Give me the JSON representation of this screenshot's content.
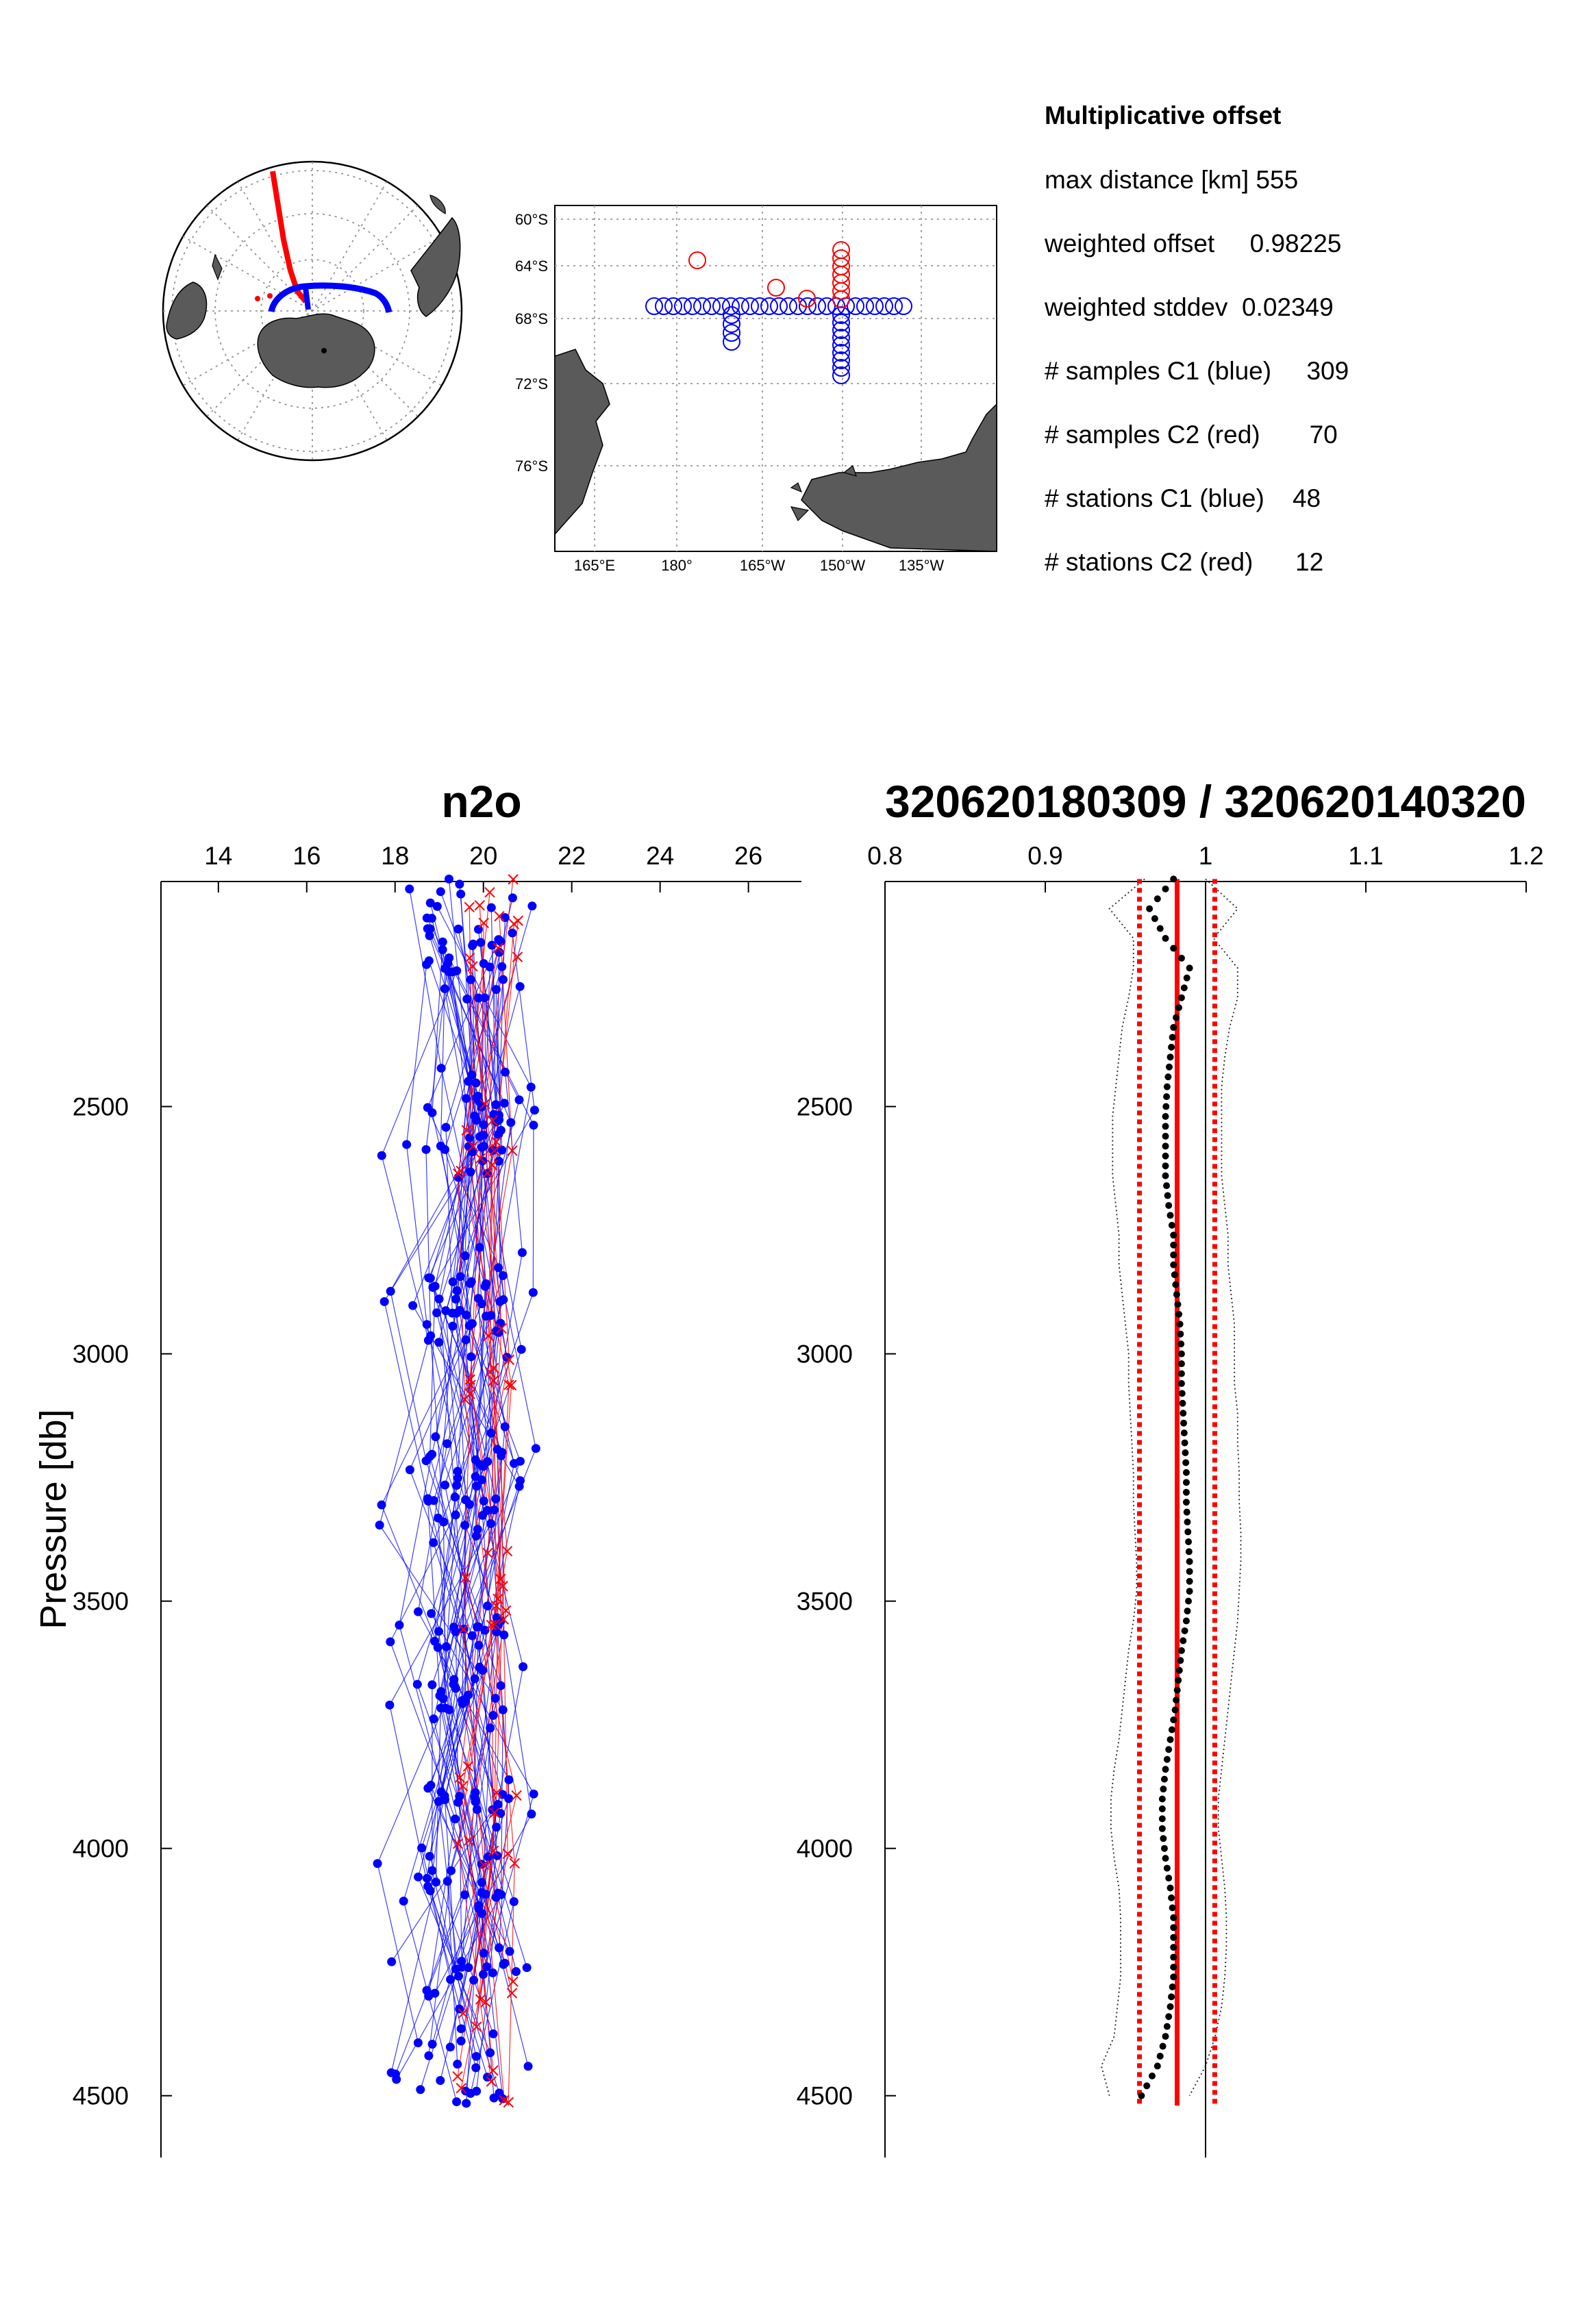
{
  "info": {
    "title": "Multiplicative offset",
    "lines": [
      "max distance [km] 555",
      "weighted offset     0.98225",
      "weighted stddev  0.02349",
      "# samples C1 (blue)     309",
      "# samples C2 (red)       70",
      "# stations C1 (blue)    48",
      "# stations C2 (red)      12"
    ]
  },
  "map": {
    "lat_labels": [
      "60°S",
      "64°S",
      "68°S",
      "72°S",
      "76°S"
    ],
    "lon_labels": [
      "165°E",
      "180°",
      "165°W",
      "150°W",
      "135°W"
    ],
    "c1_color": "#0000ff",
    "c2_color": "#ff0000",
    "land_color": "#5a5a5a"
  },
  "chart_data": [
    {
      "type": "scatter",
      "title": "n2o",
      "xlabel": "",
      "ylabel": "Pressure  [db]",
      "xlim": [
        12.7,
        27.2
      ],
      "ylim": [
        2045,
        4625
      ],
      "y_reversed": true,
      "xticks": [
        14,
        16,
        18,
        20,
        22,
        24,
        26
      ],
      "yticks": [
        2500,
        3000,
        3500,
        4000,
        4500
      ],
      "x_axis_position": "top",
      "series": [
        {
          "name": "C1 (blue)",
          "color": "#0000ff",
          "marker": "filled-circle",
          "n_points": 309,
          "x_range": [
            17.6,
            21.2
          ],
          "y_range": [
            2040,
            4520
          ]
        },
        {
          "name": "C2 (red)",
          "color": "#ff0000",
          "marker": "x",
          "n_points": 70,
          "x_range": [
            19.0,
            21.0
          ],
          "y_range": [
            2040,
            4520
          ]
        }
      ]
    },
    {
      "type": "line",
      "title": "320620180309 / 320620140320",
      "xlabel": "",
      "ylabel": "",
      "xlim": [
        0.8,
        1.2
      ],
      "ylim": [
        2045,
        4625
      ],
      "y_reversed": true,
      "xticks": [
        0.8,
        0.9,
        1,
        1.1,
        1.2
      ],
      "yticks": [
        2500,
        3000,
        3500,
        4000,
        4500
      ],
      "x_axis_position": "top",
      "weighted_offset": 0.98225,
      "weighted_stddev": 0.02349,
      "reference_line": 1.0,
      "ratio_profile": {
        "pressure": [
          2040,
          2100,
          2160,
          2220,
          2280,
          2340,
          2400,
          2460,
          2520,
          2580,
          2640,
          2700,
          2760,
          2820,
          2880,
          2940,
          3000,
          3060,
          3120,
          3180,
          3240,
          3300,
          3360,
          3420,
          3480,
          3540,
          3600,
          3660,
          3720,
          3780,
          3840,
          3900,
          3960,
          4020,
          4080,
          4140,
          4200,
          4260,
          4320,
          4380,
          4440,
          4500
        ],
        "ratio": [
          0.98,
          0.965,
          0.975,
          0.99,
          0.985,
          0.98,
          0.978,
          0.976,
          0.975,
          0.975,
          0.975,
          0.977,
          0.98,
          0.98,
          0.982,
          0.984,
          0.985,
          0.985,
          0.986,
          0.987,
          0.988,
          0.988,
          0.989,
          0.99,
          0.99,
          0.988,
          0.985,
          0.983,
          0.981,
          0.978,
          0.975,
          0.973,
          0.973,
          0.975,
          0.978,
          0.98,
          0.98,
          0.98,
          0.978,
          0.975,
          0.97,
          0.96
        ]
      },
      "envelope_upper": [
        1.0,
        1.02,
        1.005,
        1.02,
        1.02,
        1.015,
        1.012,
        1.01,
        1.01,
        1.01,
        1.01,
        1.012,
        1.014,
        1.014,
        1.016,
        1.018,
        1.018,
        1.018,
        1.02,
        1.02,
        1.021,
        1.021,
        1.022,
        1.022,
        1.021,
        1.02,
        1.018,
        1.016,
        1.014,
        1.012,
        1.01,
        1.008,
        1.008,
        1.01,
        1.012,
        1.013,
        1.013,
        1.012,
        1.01,
        1.006,
        1.0,
        0.99
      ],
      "envelope_lower": [
        0.962,
        0.94,
        0.955,
        0.955,
        0.952,
        0.948,
        0.946,
        0.944,
        0.942,
        0.942,
        0.942,
        0.944,
        0.946,
        0.946,
        0.948,
        0.95,
        0.952,
        0.952,
        0.953,
        0.954,
        0.955,
        0.955,
        0.956,
        0.957,
        0.957,
        0.955,
        0.952,
        0.95,
        0.948,
        0.946,
        0.943,
        0.941,
        0.941,
        0.943,
        0.946,
        0.947,
        0.947,
        0.947,
        0.945,
        0.943,
        0.935,
        0.94
      ]
    }
  ]
}
